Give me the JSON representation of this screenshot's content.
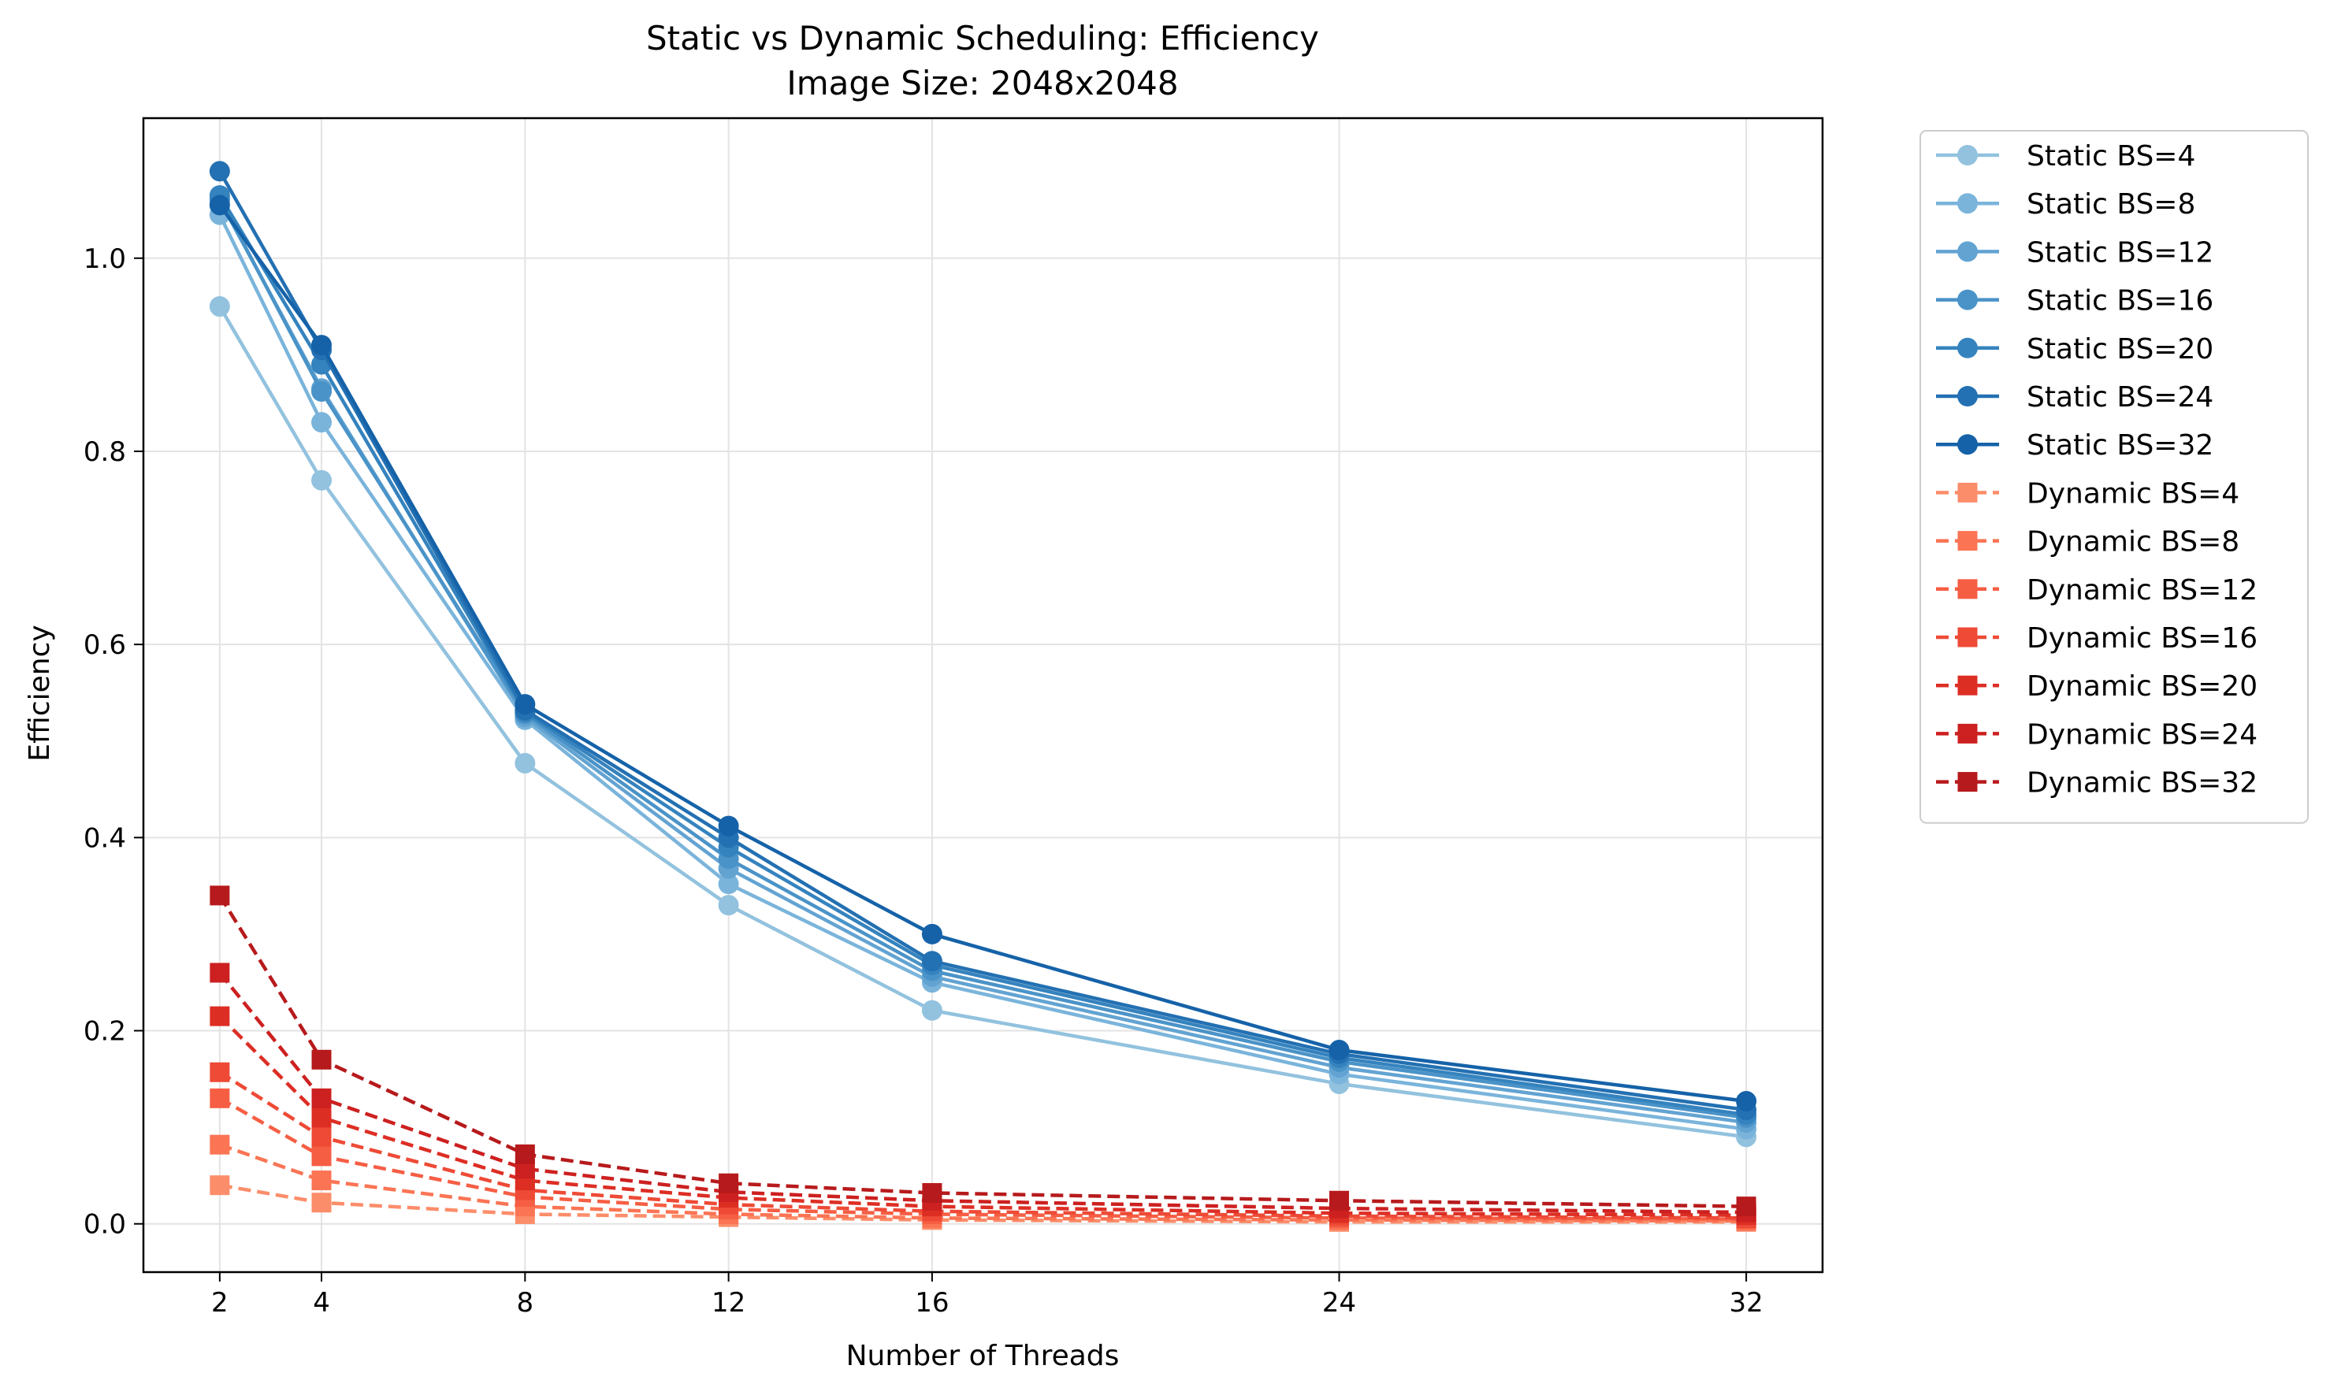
{
  "chart_data": {
    "type": "line",
    "title": "Static vs Dynamic Scheduling: Efficiency",
    "subtitle": "Image Size: 2048x2048",
    "xlabel": "Number of Threads",
    "ylabel": "Efficiency",
    "x": [
      2,
      4,
      8,
      12,
      16,
      24,
      32
    ],
    "xticks": [
      "2",
      "4",
      "8",
      "12",
      "16",
      "24",
      "32"
    ],
    "yticks": [
      "0.0",
      "0.2",
      "0.4",
      "0.6",
      "0.8",
      "1.0"
    ],
    "xlim": [
      0.5,
      33.5
    ],
    "ylim": [
      -0.05,
      1.145
    ],
    "grid": true,
    "legend_placement": "outside-upper-right",
    "series": [
      {
        "name": "Static BS=4",
        "group": "static",
        "color": "#92c2de",
        "values": [
          0.95,
          0.77,
          0.477,
          0.33,
          0.221,
          0.145,
          0.09
        ]
      },
      {
        "name": "Static BS=8",
        "group": "static",
        "color": "#7ab4db",
        "values": [
          1.045,
          0.83,
          0.522,
          0.352,
          0.25,
          0.155,
          0.098
        ]
      },
      {
        "name": "Static BS=12",
        "group": "static",
        "color": "#62a3d2",
        "values": [
          1.06,
          0.865,
          0.525,
          0.368,
          0.256,
          0.162,
          0.105
        ]
      },
      {
        "name": "Static BS=16",
        "group": "static",
        "color": "#4a93c8",
        "values": [
          1.062,
          0.862,
          0.528,
          0.378,
          0.262,
          0.168,
          0.11
        ]
      },
      {
        "name": "Static BS=20",
        "group": "static",
        "color": "#3583be",
        "values": [
          1.065,
          0.89,
          0.53,
          0.39,
          0.268,
          0.172,
          0.113
        ]
      },
      {
        "name": "Static BS=24",
        "group": "static",
        "color": "#2370b2",
        "values": [
          1.09,
          0.905,
          0.532,
          0.4,
          0.272,
          0.176,
          0.118
        ]
      },
      {
        "name": "Static BS=32",
        "group": "static",
        "color": "#1562a8",
        "values": [
          1.055,
          0.91,
          0.538,
          0.412,
          0.3,
          0.18,
          0.127
        ]
      },
      {
        "name": "Dynamic BS=4",
        "group": "dynamic",
        "color": "#fc8d6a",
        "values": [
          0.04,
          0.022,
          0.01,
          0.007,
          0.004,
          0.002,
          0.002
        ]
      },
      {
        "name": "Dynamic BS=8",
        "group": "dynamic",
        "color": "#fb7454",
        "values": [
          0.082,
          0.045,
          0.018,
          0.01,
          0.006,
          0.004,
          0.003
        ]
      },
      {
        "name": "Dynamic BS=12",
        "group": "dynamic",
        "color": "#f65e44",
        "values": [
          0.13,
          0.07,
          0.028,
          0.015,
          0.01,
          0.006,
          0.005
        ]
      },
      {
        "name": "Dynamic BS=16",
        "group": "dynamic",
        "color": "#ee4a36",
        "values": [
          0.157,
          0.09,
          0.035,
          0.02,
          0.013,
          0.008,
          0.006
        ]
      },
      {
        "name": "Dynamic BS=20",
        "group": "dynamic",
        "color": "#dd2e24",
        "values": [
          0.215,
          0.11,
          0.045,
          0.027,
          0.018,
          0.011,
          0.009
        ]
      },
      {
        "name": "Dynamic BS=24",
        "group": "dynamic",
        "color": "#cd2020",
        "values": [
          0.26,
          0.13,
          0.057,
          0.033,
          0.024,
          0.016,
          0.012
        ]
      },
      {
        "name": "Dynamic BS=32",
        "group": "dynamic",
        "color": "#b71a1c",
        "values": [
          0.34,
          0.17,
          0.072,
          0.042,
          0.032,
          0.024,
          0.018
        ]
      }
    ]
  }
}
